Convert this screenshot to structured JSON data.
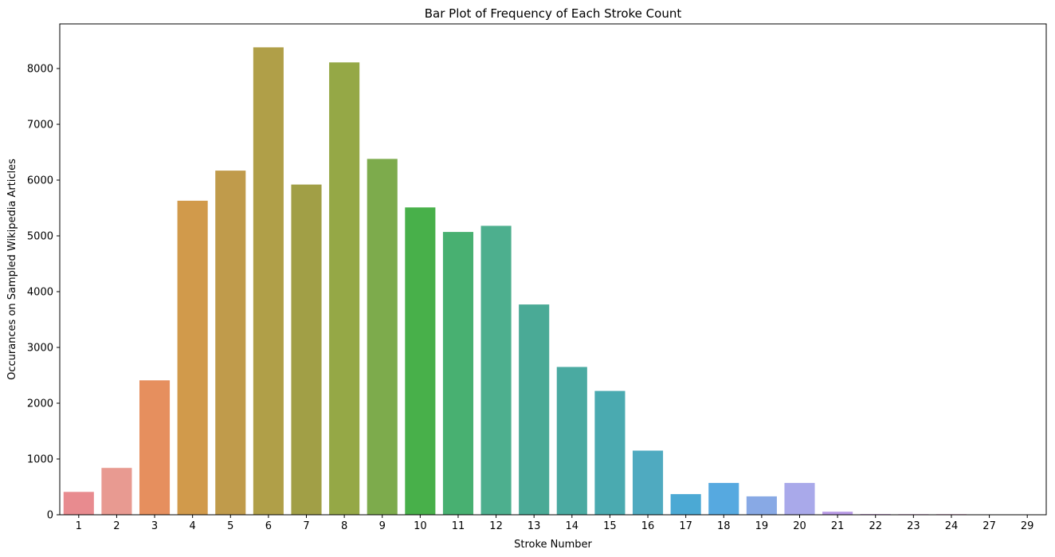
{
  "chart_data": {
    "type": "bar",
    "title": "Bar Plot of Frequency of Each Stroke Count",
    "xlabel": "Stroke Number",
    "ylabel": "Occurances on Sampled Wikipedia Articles",
    "categories": [
      "1",
      "2",
      "3",
      "4",
      "5",
      "6",
      "7",
      "8",
      "9",
      "10",
      "11",
      "12",
      "13",
      "14",
      "15",
      "16",
      "17",
      "18",
      "19",
      "20",
      "21",
      "22",
      "23",
      "24",
      "27",
      "29"
    ],
    "values": [
      410,
      840,
      2410,
      5630,
      6170,
      8380,
      5920,
      8110,
      6380,
      5510,
      5070,
      5180,
      3770,
      2650,
      2220,
      1150,
      370,
      570,
      330,
      570,
      55,
      12,
      10,
      10,
      4,
      3
    ],
    "colors": [
      "#e88b8f",
      "#e89a91",
      "#e68f5e",
      "#d19a4b",
      "#c09b4b",
      "#b09f48",
      "#a19f46",
      "#95a846",
      "#7dab4c",
      "#48b04a",
      "#48b071",
      "#4daf8e",
      "#4aaa96",
      "#4aaaa1",
      "#4aaab0",
      "#4faac0",
      "#4ba9d4",
      "#56a9e0",
      "#88a9e5",
      "#a9a9ea",
      "#b99be6",
      "#cd8ce0",
      "#dc86d4",
      "#e27fc0",
      "#e684ae",
      "#e8859f"
    ],
    "ylim": [
      0,
      8800
    ],
    "yticks": [
      0,
      1000,
      2000,
      3000,
      4000,
      5000,
      6000,
      7000,
      8000
    ],
    "grid": false,
    "legend": "none"
  }
}
